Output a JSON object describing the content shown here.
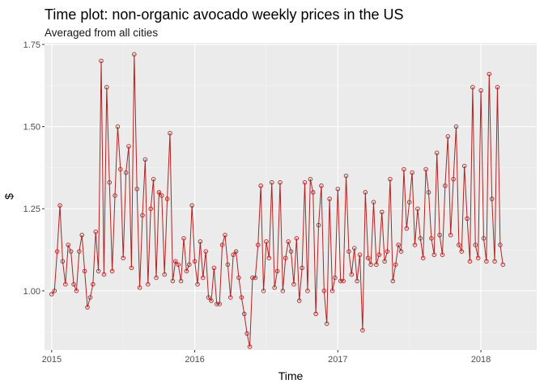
{
  "chart_data": {
    "type": "line",
    "title": "Time plot: non-organic avocado weekly prices in the US",
    "subtitle": "Averaged from all cities",
    "xlabel": "Time",
    "ylabel": "$",
    "xlim": [
      2014.95,
      2018.39
    ],
    "ylim": [
      0.82,
      1.755
    ],
    "x_ticks": [
      2015,
      2016,
      2017,
      2018
    ],
    "x_tick_labels": [
      "2015",
      "2016",
      "2017",
      "2018"
    ],
    "y_ticks": [
      1.0,
      1.25,
      1.5,
      1.75
    ],
    "y_tick_labels": [
      "1.00",
      "1.25",
      "1.50",
      "1.75"
    ],
    "grid": true,
    "legend": "none",
    "colors": {
      "line": "#b22222",
      "panel": "#ebebeb",
      "grid_major": "#ffffff",
      "grid_minor": "#f5f5f5"
    },
    "series": [
      {
        "x_start": 2015.0,
        "x_step": 0.019231,
        "values": [
          0.99,
          1.0,
          1.12,
          1.26,
          1.09,
          1.02,
          1.14,
          1.12,
          1.02,
          1.0,
          1.12,
          1.17,
          1.06,
          0.95,
          0.98,
          1.02,
          1.18,
          1.06,
          1.7,
          1.05,
          1.62,
          1.33,
          1.06,
          1.29,
          1.5,
          1.37,
          1.1,
          1.36,
          1.44,
          1.07,
          1.72,
          1.31,
          1.01,
          1.23,
          1.4,
          1.02,
          1.25,
          1.34,
          1.04,
          1.3,
          1.29,
          1.05,
          1.28,
          1.48,
          1.03,
          1.09,
          1.08,
          1.03,
          1.16,
          1.06,
          1.08,
          1.26,
          1.09,
          1.02,
          1.15,
          1.04,
          1.12,
          0.98,
          0.97,
          1.07,
          0.96,
          0.96,
          1.14,
          1.17,
          1.08,
          0.98,
          1.11,
          1.12,
          1.04,
          0.98,
          0.93,
          0.87,
          0.83,
          1.04,
          1.04,
          1.14,
          1.32,
          1.0,
          1.15,
          1.1,
          1.33,
          1.01,
          1.06,
          1.33,
          1.0,
          1.1,
          1.15,
          1.12,
          1.02,
          1.16,
          0.97,
          1.07,
          1.33,
          1.0,
          1.34,
          1.3,
          0.93,
          1.2,
          1.32,
          1.0,
          0.9,
          1.28,
          1.0,
          1.04,
          1.31,
          1.03,
          1.03,
          1.35,
          1.12,
          1.05,
          1.13,
          1.03,
          1.11,
          0.88,
          1.3,
          1.1,
          1.08,
          1.27,
          1.08,
          1.11,
          1.24,
          1.09,
          1.12,
          1.34,
          1.03,
          1.08,
          1.14,
          1.12,
          1.37,
          1.19,
          1.27,
          1.36,
          1.14,
          1.25,
          1.16,
          1.1,
          1.37,
          1.3,
          1.16,
          1.11,
          1.42,
          1.17,
          1.11,
          1.32,
          1.47,
          1.17,
          1.34,
          1.5,
          1.14,
          1.12,
          1.38,
          1.22,
          1.09,
          1.62,
          1.14,
          1.1,
          1.61,
          1.16,
          1.09,
          1.66,
          1.28,
          1.09,
          1.62,
          1.14,
          1.08
        ]
      }
    ]
  }
}
